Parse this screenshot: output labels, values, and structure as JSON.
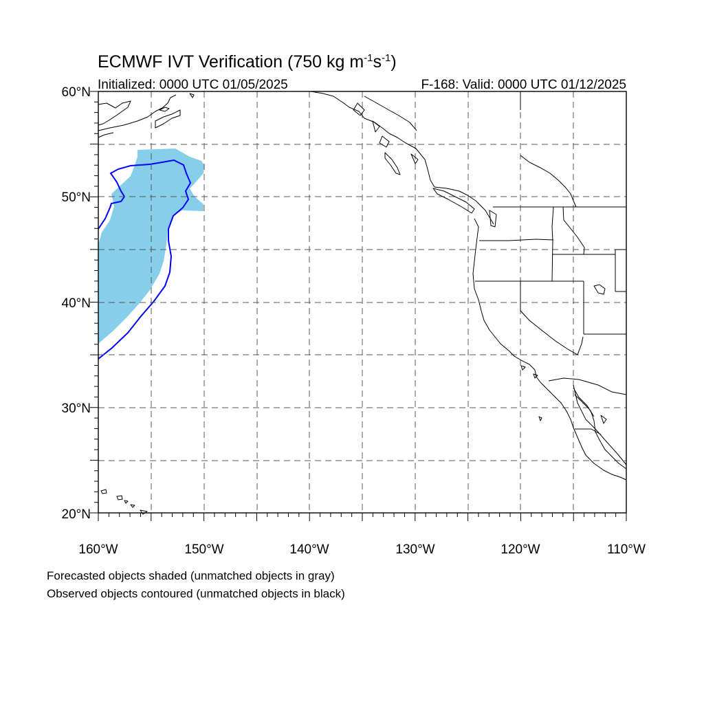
{
  "title": {
    "main_prefix": "ECMWF IVT Verification (750 kg m",
    "sup1": "-1",
    "mid": "s",
    "sup2": "-1",
    "suffix": ")",
    "initialized": "Initialized: 0000 UTC 01/05/2025",
    "valid": "F-168: Valid: 0000 UTC 01/12/2025"
  },
  "axes": {
    "lon_range": [
      -160,
      -110
    ],
    "lat_range": [
      20,
      60
    ],
    "lon_labels": [
      "160°W",
      "150°W",
      "140°W",
      "130°W",
      "120°W",
      "110°W"
    ],
    "lat_labels": [
      "20°N",
      "30°N",
      "40°N",
      "50°N",
      "60°N"
    ]
  },
  "legend": {
    "line1": "Forecasted objects shaded (unmatched objects in gray)",
    "line2": "Observed objects contoured (unmatched objects in black)"
  },
  "colors": {
    "forecast_fill": "#87ceeb",
    "observed_contour": "#0000ff",
    "coastline": "#000000",
    "gridline": "#555555"
  },
  "objects": {
    "forecast": "shaded",
    "observed": "contoured"
  }
}
